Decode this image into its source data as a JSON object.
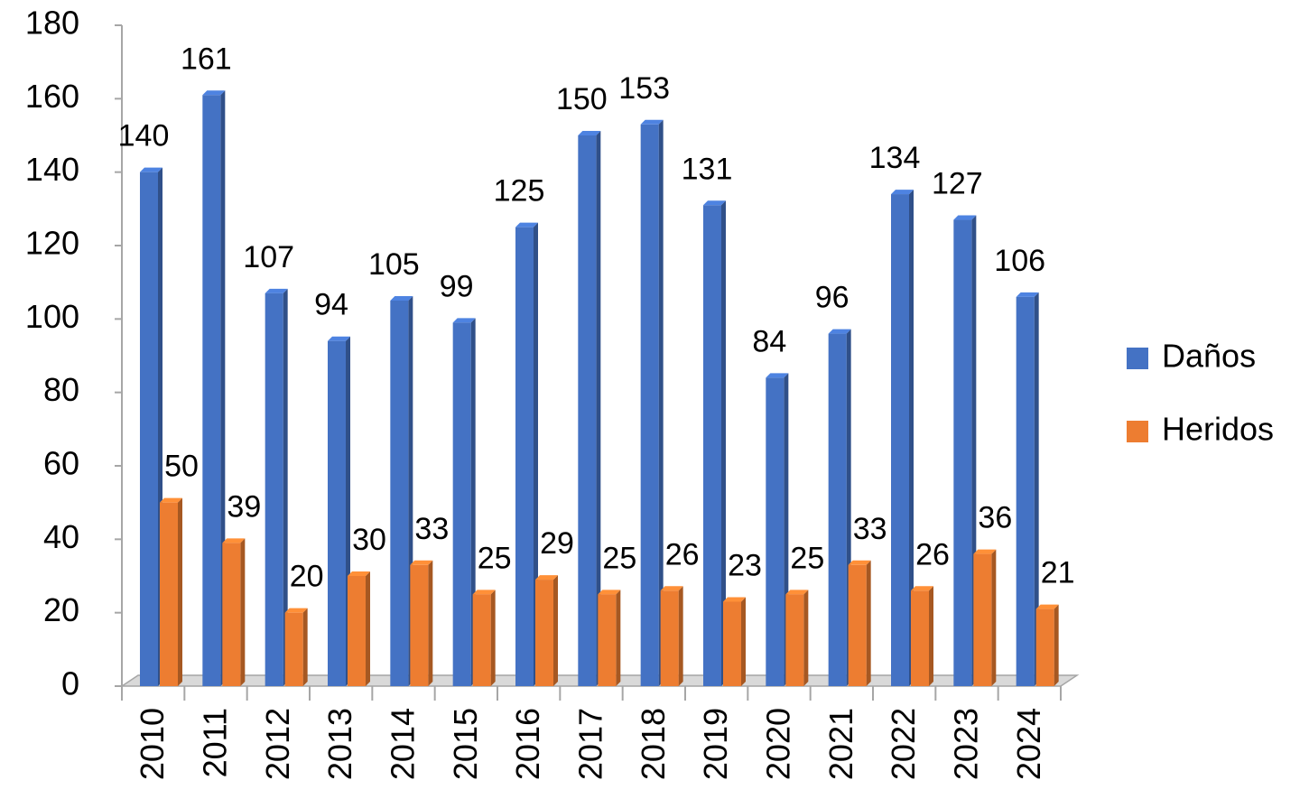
{
  "chart_data": {
    "type": "bar",
    "categories": [
      "2010",
      "2011",
      "2012",
      "2013",
      "2014",
      "2015",
      "2016",
      "2017",
      "2018",
      "2019",
      "2020",
      "2021",
      "2022",
      "2023",
      "2024"
    ],
    "series": [
      {
        "name": "Daños",
        "color": "#4472c4",
        "values": [
          140,
          161,
          107,
          94,
          105,
          99,
          125,
          150,
          153,
          131,
          84,
          96,
          134,
          127,
          106
        ]
      },
      {
        "name": "Heridos",
        "color": "#ed7d31",
        "values": [
          50,
          39,
          20,
          30,
          33,
          25,
          29,
          25,
          26,
          23,
          25,
          33,
          26,
          36,
          21
        ]
      }
    ],
    "ylim": [
      0,
      180
    ],
    "yticks": [
      0,
      20,
      40,
      60,
      80,
      100,
      120,
      140,
      160,
      180
    ],
    "legend": "right"
  }
}
